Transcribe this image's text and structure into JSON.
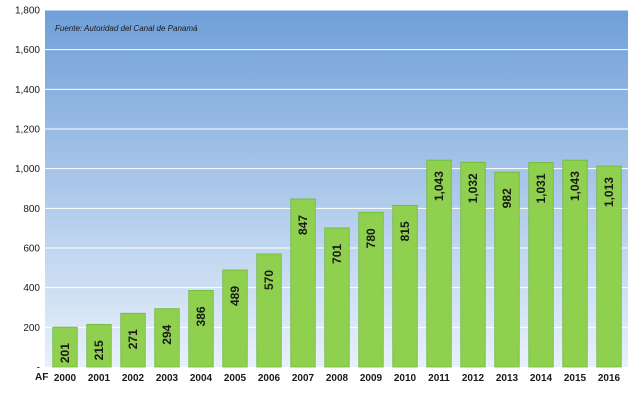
{
  "chart_data": {
    "type": "bar",
    "title": "",
    "source_note": "Fuente: Autoridad del Canal de Panamá",
    "xlabel": "AF",
    "ylabel": "",
    "categories": [
      "2000",
      "2001",
      "2002",
      "2003",
      "2004",
      "2005",
      "2006",
      "2007",
      "2008",
      "2009",
      "2010",
      "2011",
      "2012",
      "2013",
      "2014",
      "2015",
      "2016"
    ],
    "values": [
      201,
      215,
      271,
      294,
      386,
      489,
      570,
      847,
      701,
      780,
      815,
      1043,
      1032,
      982,
      1031,
      1043,
      1013
    ],
    "value_labels": [
      "201",
      "215",
      "271",
      "294",
      "386",
      "489",
      "570",
      "847",
      "701",
      "780",
      "815",
      "1,043",
      "1,032",
      "982",
      "1,031",
      "1,043",
      "1,013"
    ],
    "ylim": [
      0,
      1800
    ],
    "y_ticks": [
      0,
      200,
      400,
      600,
      800,
      1000,
      1200,
      1400,
      1600,
      1800
    ],
    "y_tick_labels": [
      "-",
      "200",
      "400",
      "600",
      "800",
      "1,000",
      "1,200",
      "1,400",
      "1,600",
      "1,800"
    ],
    "grid": true,
    "colors": {
      "bar": "#8fd14f",
      "bar_edge": "#6fb83a",
      "plot_bg_top": "#6f9fd8",
      "plot_bg_bottom": "#e8f1fb",
      "grid": "#ffffff"
    }
  }
}
